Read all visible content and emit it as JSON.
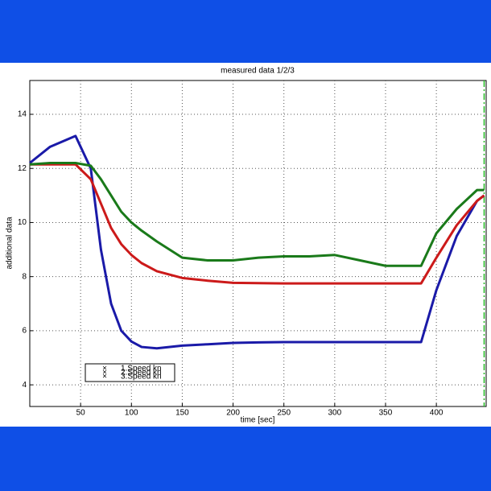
{
  "chart_data": {
    "type": "line",
    "title": "measured data 1/2/3",
    "x_label": "time [sec]",
    "y_label": "additional data",
    "x": [
      0,
      20,
      45,
      60,
      70,
      80,
      90,
      100,
      110,
      125,
      150,
      175,
      200,
      225,
      250,
      275,
      300,
      325,
      350,
      385,
      400,
      420,
      440,
      447
    ],
    "series": [
      {
        "name": "1.Speed kn",
        "color": "#1a1aa8",
        "values": [
          12.2,
          12.8,
          13.2,
          12.0,
          9.0,
          7.0,
          6.0,
          5.6,
          5.4,
          5.35,
          5.45,
          5.5,
          5.55,
          5.57,
          5.58,
          5.58,
          5.58,
          5.58,
          5.58,
          5.58,
          7.5,
          9.5,
          10.8,
          11.0
        ]
      },
      {
        "name": "2.Speed kn",
        "color": "#cc1a1a",
        "values": [
          12.15,
          12.15,
          12.15,
          11.6,
          10.7,
          9.8,
          9.2,
          8.8,
          8.5,
          8.2,
          7.95,
          7.85,
          7.77,
          7.76,
          7.75,
          7.75,
          7.75,
          7.75,
          7.75,
          7.75,
          8.7,
          9.9,
          10.8,
          11.0
        ]
      },
      {
        "name": "3.Speed kn",
        "color": "#1a7a1a",
        "values": [
          12.15,
          12.2,
          12.2,
          12.1,
          11.6,
          11.0,
          10.4,
          10.0,
          9.7,
          9.3,
          8.7,
          8.6,
          8.6,
          8.7,
          8.75,
          8.75,
          8.8,
          8.6,
          8.4,
          8.4,
          9.6,
          10.5,
          11.2,
          11.2
        ]
      }
    ],
    "xlim": [
      0,
      449
    ],
    "ylim": [
      3.2,
      15.25
    ],
    "xticks": [
      50,
      100,
      150,
      200,
      250,
      300,
      350,
      400
    ],
    "yticks": [
      4,
      6,
      8,
      10,
      12,
      14
    ],
    "vline": 447,
    "vline_color": "#22bb22",
    "grid": true
  }
}
